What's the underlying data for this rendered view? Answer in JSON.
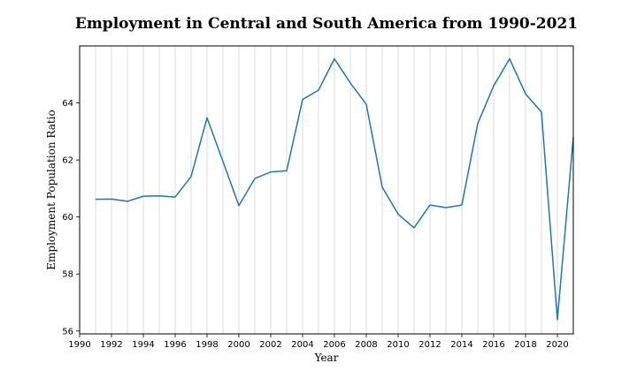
{
  "chart_data": {
    "type": "line",
    "title": "Employment in Central and South America from 1990-2021",
    "xlabel": "Year",
    "ylabel": "Employment Population Ratio",
    "xlim": [
      1990,
      2021
    ],
    "ylim": [
      55.9,
      66.0
    ],
    "xticks": [
      1990,
      1992,
      1994,
      1996,
      1998,
      2000,
      2002,
      2004,
      2006,
      2008,
      2010,
      2012,
      2014,
      2016,
      2018,
      2020
    ],
    "yticks": [
      56,
      58,
      60,
      62,
      64
    ],
    "grid": "vertical minor gridlines every year",
    "line_color": "#1f77b4",
    "series": [
      {
        "x": [
          1991,
          1992,
          1993,
          1994,
          1995,
          1996,
          1997,
          1998,
          1999,
          2000,
          2001,
          2002,
          2003,
          2004,
          2005,
          2006,
          2007,
          2008,
          2009,
          2010,
          2011,
          2012,
          2013,
          2014,
          2015,
          2016,
          2017,
          2018,
          2019,
          2020,
          2021
        ],
        "y": [
          60.62,
          60.63,
          60.55,
          60.73,
          60.74,
          60.7,
          61.42,
          63.48,
          61.95,
          60.4,
          61.35,
          61.58,
          61.62,
          64.12,
          64.45,
          65.55,
          64.7,
          63.95,
          61.05,
          60.1,
          59.62,
          60.42,
          60.33,
          60.42,
          63.28,
          64.6,
          65.55,
          64.32,
          63.68,
          56.4,
          62.8
        ]
      }
    ]
  }
}
